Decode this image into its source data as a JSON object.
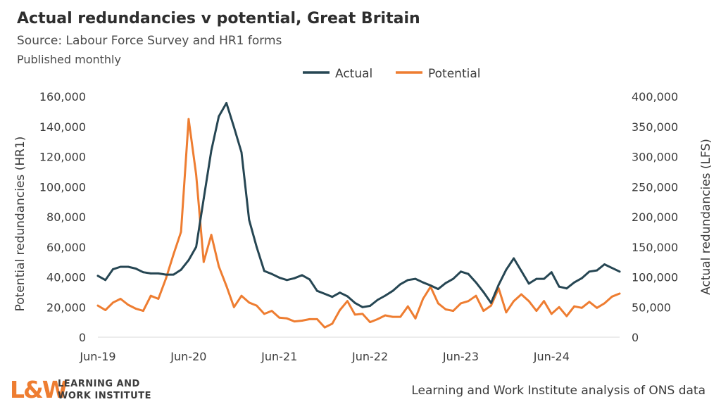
{
  "header": {
    "title": "Actual redundancies v potential, Great Britain",
    "subtitle": "Source: Labour Force Survey and HR1 forms",
    "subtitle2": "Published monthly"
  },
  "footer": {
    "logo_mark": "L&W",
    "logo_line1": "LEARNING AND",
    "logo_line2": "WORK INSTITUTE",
    "note": "Learning and Work Institute analysis of ONS data"
  },
  "chart_data": {
    "type": "line",
    "x_categories": [
      "Jun-19",
      "Jul-19",
      "Aug-19",
      "Sep-19",
      "Oct-19",
      "Nov-19",
      "Dec-19",
      "Jan-20",
      "Feb-20",
      "Mar-20",
      "Apr-20",
      "May-20",
      "Jun-20",
      "Jul-20",
      "Aug-20",
      "Sep-20",
      "Oct-20",
      "Nov-20",
      "Dec-20",
      "Jan-21",
      "Feb-21",
      "Mar-21",
      "Apr-21",
      "May-21",
      "Jun-21",
      "Jul-21",
      "Aug-21",
      "Sep-21",
      "Oct-21",
      "Nov-21",
      "Dec-21",
      "Jan-22",
      "Feb-22",
      "Mar-22",
      "Apr-22",
      "May-22",
      "Jun-22",
      "Jul-22",
      "Aug-22",
      "Sep-22",
      "Oct-22",
      "Nov-22",
      "Dec-22",
      "Jan-23",
      "Feb-23",
      "Mar-23",
      "Apr-23",
      "May-23",
      "Jun-23",
      "Jul-23",
      "Aug-23",
      "Sep-23",
      "Oct-23",
      "Nov-23",
      "Dec-23",
      "Jan-24",
      "Feb-24",
      "Mar-24",
      "Apr-24",
      "May-24",
      "Jun-24",
      "Jul-24",
      "Aug-24",
      "Sep-24",
      "Oct-24",
      "Nov-24",
      "Dec-24",
      "Jan-25",
      "Feb-25",
      "Mar-25"
    ],
    "x_tick_labels": [
      "Jun-19",
      "Jun-20",
      "Jun-21",
      "Jun-22",
      "Jun-23",
      "Jun-24"
    ],
    "left_axis": {
      "label": "Potential redundancies (HR1)",
      "min": 0,
      "max": 160000,
      "ticks": [
        "0",
        "20,000",
        "40,000",
        "60,000",
        "80,000",
        "100,000",
        "120,000",
        "140,000",
        "160,000"
      ]
    },
    "right_axis": {
      "label": "Actual redundancies (LFS)",
      "min": 0,
      "max": 400000,
      "ticks": [
        "0",
        "50,000",
        "100,000",
        "150,000",
        "200,000",
        "250,000",
        "300,000",
        "350,000",
        "400,000"
      ]
    },
    "legend_position": "top-center",
    "grid": false,
    "series": [
      {
        "name": "Actual",
        "axis": "right",
        "color": "#264653",
        "values": [
          102000,
          95000,
          113000,
          117000,
          117000,
          114000,
          108000,
          106000,
          106000,
          104000,
          104000,
          112000,
          128000,
          150000,
          230000,
          310000,
          367000,
          389000,
          349000,
          307000,
          195000,
          150000,
          110000,
          105000,
          99000,
          95000,
          98000,
          103000,
          96000,
          77000,
          72000,
          67000,
          74000,
          68000,
          57000,
          50000,
          52000,
          62000,
          69000,
          77000,
          88000,
          95000,
          97000,
          91000,
          86000,
          80000,
          90000,
          97000,
          109000,
          105000,
          91000,
          75000,
          57000,
          87000,
          112000,
          131000,
          110000,
          89000,
          97000,
          97000,
          108000,
          84000,
          81000,
          91000,
          98000,
          109000,
          111000,
          121000,
          115000,
          109000
        ]
      },
      {
        "name": "Potential",
        "axis": "left",
        "color": "#ee7d31",
        "values": [
          21000,
          18000,
          23000,
          25500,
          21500,
          19000,
          17500,
          27500,
          25500,
          39000,
          55000,
          70000,
          145000,
          108000,
          50000,
          68000,
          47000,
          34000,
          20000,
          27500,
          23000,
          21000,
          15500,
          17500,
          13000,
          12500,
          10500,
          11000,
          12000,
          12000,
          6500,
          9000,
          18000,
          24000,
          15000,
          15500,
          10000,
          12000,
          14500,
          13500,
          13500,
          20500,
          12500,
          25500,
          33500,
          22500,
          18500,
          17500,
          22500,
          24000,
          27500,
          17500,
          21000,
          32500,
          16500,
          24000,
          28500,
          24000,
          17500,
          24000,
          15500,
          20000,
          14000,
          20500,
          19500,
          23500,
          19500,
          22500,
          27000,
          29000
        ]
      }
    ]
  }
}
